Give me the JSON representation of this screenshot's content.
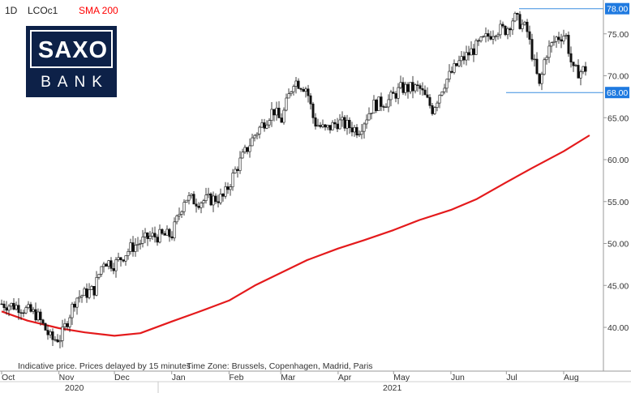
{
  "header": {
    "interval": "1D",
    "symbol": "LCOc1",
    "indicator": "SMA 200",
    "indicator_color": "#ff0000"
  },
  "logo": {
    "line1": "SAXO",
    "line2": "BANK",
    "color": "#0d2148"
  },
  "footer": {
    "disclaimer": "Indicative price. Prices delayed by 15 minutes",
    "timezone": "Time Zone: Brussels, Copenhagen, Madrid, Paris"
  },
  "chart_data": {
    "type": "candlestick",
    "ylim": [
      35,
      80
    ],
    "y_ticks": [
      "40.00",
      "45.00",
      "50.00",
      "55.00",
      "60.00",
      "65.00",
      "70.00",
      "75.00"
    ],
    "x_ticks": [
      "Oct",
      "Nov",
      "Dec",
      "Jan",
      "Feb",
      "Mar",
      "Apr",
      "May",
      "Jun",
      "Jul",
      "Aug"
    ],
    "year_labels": [
      "2020",
      "2021"
    ],
    "price_labels": [
      "78.00",
      "68.00"
    ],
    "horizontal_levels": [
      78.0,
      68.0
    ],
    "price_path": [
      [
        "2020-10-01",
        42.8
      ],
      [
        "2020-10-10",
        42.5
      ],
      [
        "2020-10-20",
        41.5
      ],
      [
        "2020-10-28",
        38.5
      ],
      [
        "2020-11-02",
        38.8
      ],
      [
        "2020-11-05",
        40.5
      ],
      [
        "2020-11-10",
        43.5
      ],
      [
        "2020-11-20",
        44.5
      ],
      [
        "2020-11-25",
        48.0
      ],
      [
        "2020-12-01",
        47.5
      ],
      [
        "2020-12-10",
        49.5
      ],
      [
        "2020-12-20",
        50.8
      ],
      [
        "2021-01-01",
        51.0
      ],
      [
        "2021-01-08",
        55.5
      ],
      [
        "2021-01-15",
        55.0
      ],
      [
        "2021-01-29",
        55.5
      ],
      [
        "2021-02-05",
        59.0
      ],
      [
        "2021-02-15",
        63.0
      ],
      [
        "2021-02-25",
        66.0
      ],
      [
        "2021-03-01",
        64.5
      ],
      [
        "2021-03-08",
        69.5
      ],
      [
        "2021-03-15",
        68.5
      ],
      [
        "2021-03-19",
        64.5
      ],
      [
        "2021-03-25",
        63.5
      ],
      [
        "2021-04-01",
        64.5
      ],
      [
        "2021-04-12",
        63.5
      ],
      [
        "2021-04-20",
        66.5
      ],
      [
        "2021-04-28",
        67.0
      ],
      [
        "2021-05-05",
        68.5
      ],
      [
        "2021-05-15",
        68.5
      ],
      [
        "2021-05-22",
        66.0
      ],
      [
        "2021-05-28",
        69.0
      ],
      [
        "2021-06-05",
        71.5
      ],
      [
        "2021-06-15",
        73.5
      ],
      [
        "2021-06-25",
        75.5
      ],
      [
        "2021-07-01",
        75.5
      ],
      [
        "2021-07-05",
        77.0
      ],
      [
        "2021-07-12",
        75.5
      ],
      [
        "2021-07-19",
        68.5
      ],
      [
        "2021-07-22",
        72.5
      ],
      [
        "2021-07-28",
        74.5
      ],
      [
        "2021-08-02",
        75.0
      ],
      [
        "2021-08-06",
        70.5
      ],
      [
        "2021-08-10",
        70.5
      ],
      [
        "2021-08-14",
        71.0
      ]
    ],
    "sma200": [
      [
        "2020-10-01",
        41.9
      ],
      [
        "2020-10-15",
        40.8
      ],
      [
        "2020-11-01",
        39.9
      ],
      [
        "2020-11-15",
        39.4
      ],
      [
        "2020-12-01",
        39.0
      ],
      [
        "2020-12-15",
        39.3
      ],
      [
        "2021-01-01",
        40.7
      ],
      [
        "2021-01-15",
        41.8
      ],
      [
        "2021-02-01",
        43.2
      ],
      [
        "2021-02-15",
        45.0
      ],
      [
        "2021-03-01",
        46.5
      ],
      [
        "2021-03-15",
        48.0
      ],
      [
        "2021-04-01",
        49.4
      ],
      [
        "2021-04-15",
        50.4
      ],
      [
        "2021-05-01",
        51.6
      ],
      [
        "2021-05-15",
        52.8
      ],
      [
        "2021-06-01",
        54.0
      ],
      [
        "2021-06-15",
        55.3
      ],
      [
        "2021-07-01",
        57.3
      ],
      [
        "2021-07-15",
        59.0
      ],
      [
        "2021-08-01",
        61.0
      ],
      [
        "2021-08-15",
        62.9
      ]
    ]
  }
}
